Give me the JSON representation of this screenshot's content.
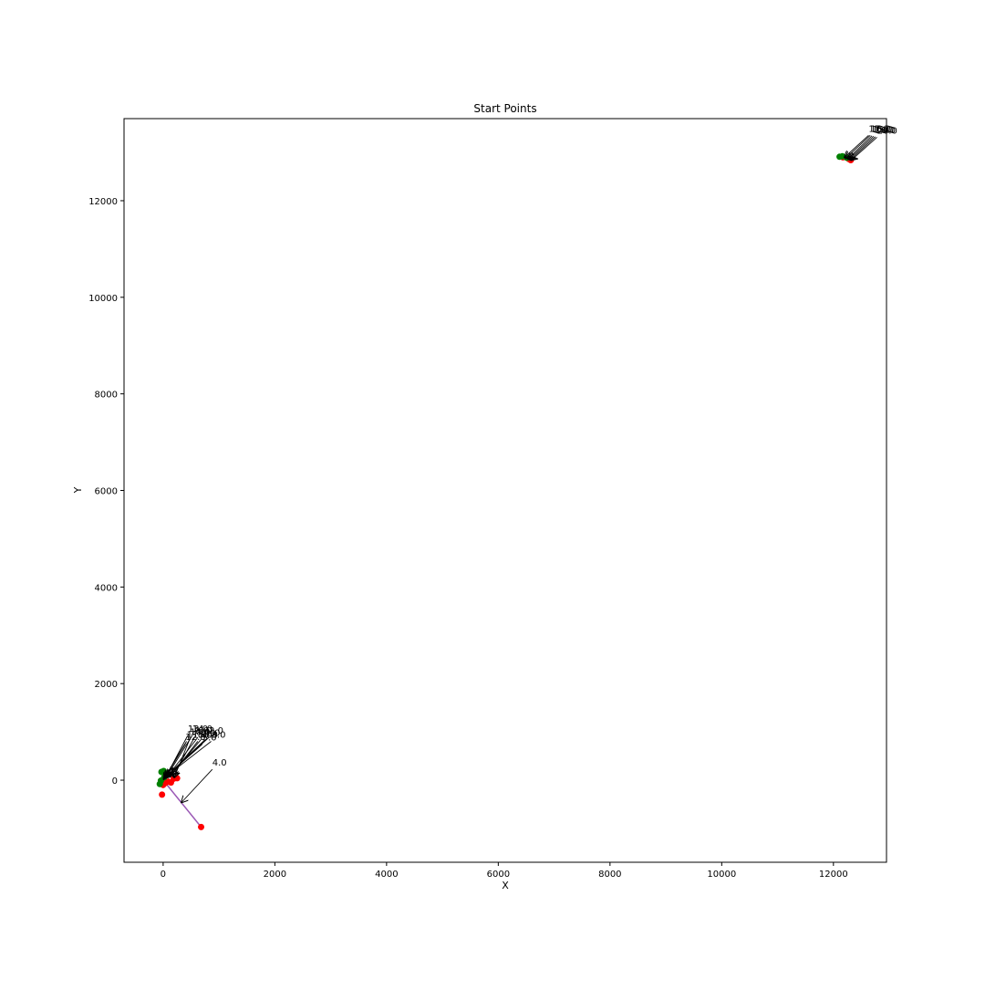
{
  "chart_data": {
    "type": "scatter",
    "title": "Start Points",
    "xlabel": "X",
    "ylabel": "Y",
    "xlim": [
      -700,
      12950
    ],
    "ylim": [
      -1700,
      13700
    ],
    "xticks": [
      0,
      2000,
      4000,
      6000,
      8000,
      10000,
      12000
    ],
    "yticks": [
      0,
      2000,
      4000,
      6000,
      8000,
      10000,
      12000
    ],
    "grid": false,
    "legend": "none",
    "colors": {
      "red_points": "#ff0000",
      "green_points": "#008000",
      "segment": "#9b59b6",
      "arrows": "#000000",
      "axes": "#000000"
    },
    "series": [
      {
        "color": "red",
        "points": [
          {
            "x": 680,
            "y": -970
          },
          {
            "x": -20,
            "y": -300
          },
          {
            "x": 0,
            "y": -100
          },
          {
            "x": 40,
            "y": -60
          },
          {
            "x": 90,
            "y": -30
          },
          {
            "x": 140,
            "y": -50
          },
          {
            "x": 190,
            "y": 30
          },
          {
            "x": 250,
            "y": 40
          },
          {
            "x": 60,
            "y": 120
          },
          {
            "x": 12170,
            "y": 12900
          },
          {
            "x": 12280,
            "y": 12860
          },
          {
            "x": 12310,
            "y": 12840
          }
        ]
      },
      {
        "color": "green",
        "points": [
          {
            "x": -30,
            "y": 170
          },
          {
            "x": 10,
            "y": 190
          },
          {
            "x": -40,
            "y": -10
          },
          {
            "x": -60,
            "y": -80
          },
          {
            "x": 20,
            "y": 60
          },
          {
            "x": 12110,
            "y": 12910
          },
          {
            "x": 12160,
            "y": 12920
          },
          {
            "x": 12240,
            "y": 12890
          }
        ]
      }
    ],
    "segments": [
      {
        "x": [
          0,
          680
        ],
        "y": [
          0,
          -970
        ],
        "color": "purple"
      }
    ],
    "annotations": [
      {
        "label": "4.0",
        "x": 330,
        "y": -460,
        "text_x": 880,
        "text_y": 300
      },
      {
        "label": "0.0",
        "x": 40,
        "y": 60,
        "text_x": 720,
        "text_y": 880
      },
      {
        "label": "1.0",
        "x": 60,
        "y": 80,
        "text_x": 760,
        "text_y": 920
      },
      {
        "label": "2.0",
        "x": 80,
        "y": 100,
        "text_x": 820,
        "text_y": 960
      },
      {
        "label": "3.0",
        "x": 100,
        "y": 120,
        "text_x": 860,
        "text_y": 880
      },
      {
        "label": "5.0",
        "x": 20,
        "y": 40,
        "text_x": 700,
        "text_y": 820
      },
      {
        "label": "6.0",
        "x": 120,
        "y": 140,
        "text_x": 620,
        "text_y": 960
      },
      {
        "label": "7.0",
        "x": 140,
        "y": 100,
        "text_x": 680,
        "text_y": 920
      },
      {
        "label": "8.0",
        "x": 160,
        "y": 120,
        "text_x": 620,
        "text_y": 880
      },
      {
        "label": "9.0",
        "x": 180,
        "y": 80,
        "text_x": 560,
        "text_y": 960
      },
      {
        "label": "10.0",
        "x": 200,
        "y": 60,
        "text_x": 480,
        "text_y": 940
      },
      {
        "label": "11.0",
        "x": 10,
        "y": 20,
        "text_x": 420,
        "text_y": 880
      },
      {
        "label": "12.0",
        "x": 30,
        "y": 50,
        "text_x": 400,
        "text_y": 830
      },
      {
        "label": "13.0",
        "x": 50,
        "y": 70,
        "text_x": 440,
        "text_y": 1000
      },
      {
        "label": "14.0",
        "x": 70,
        "y": 90,
        "text_x": 520,
        "text_y": 1000
      },
      {
        "label": "17.0",
        "x": 12200,
        "y": 12900,
        "text_x": 12630,
        "text_y": 13430
      },
      {
        "label": "16.0",
        "x": 12220,
        "y": 12880,
        "text_x": 12660,
        "text_y": 13430
      },
      {
        "label": "15.0",
        "x": 12260,
        "y": 12870,
        "text_x": 12690,
        "text_y": 13420
      },
      {
        "label": "19.0",
        "x": 12280,
        "y": 12860,
        "text_x": 12720,
        "text_y": 13410
      },
      {
        "label": "18.0",
        "x": 12300,
        "y": 12850,
        "text_x": 12750,
        "text_y": 13400
      },
      {
        "label": "20.0",
        "x": 12320,
        "y": 12840,
        "text_x": 12780,
        "text_y": 13390
      }
    ]
  }
}
